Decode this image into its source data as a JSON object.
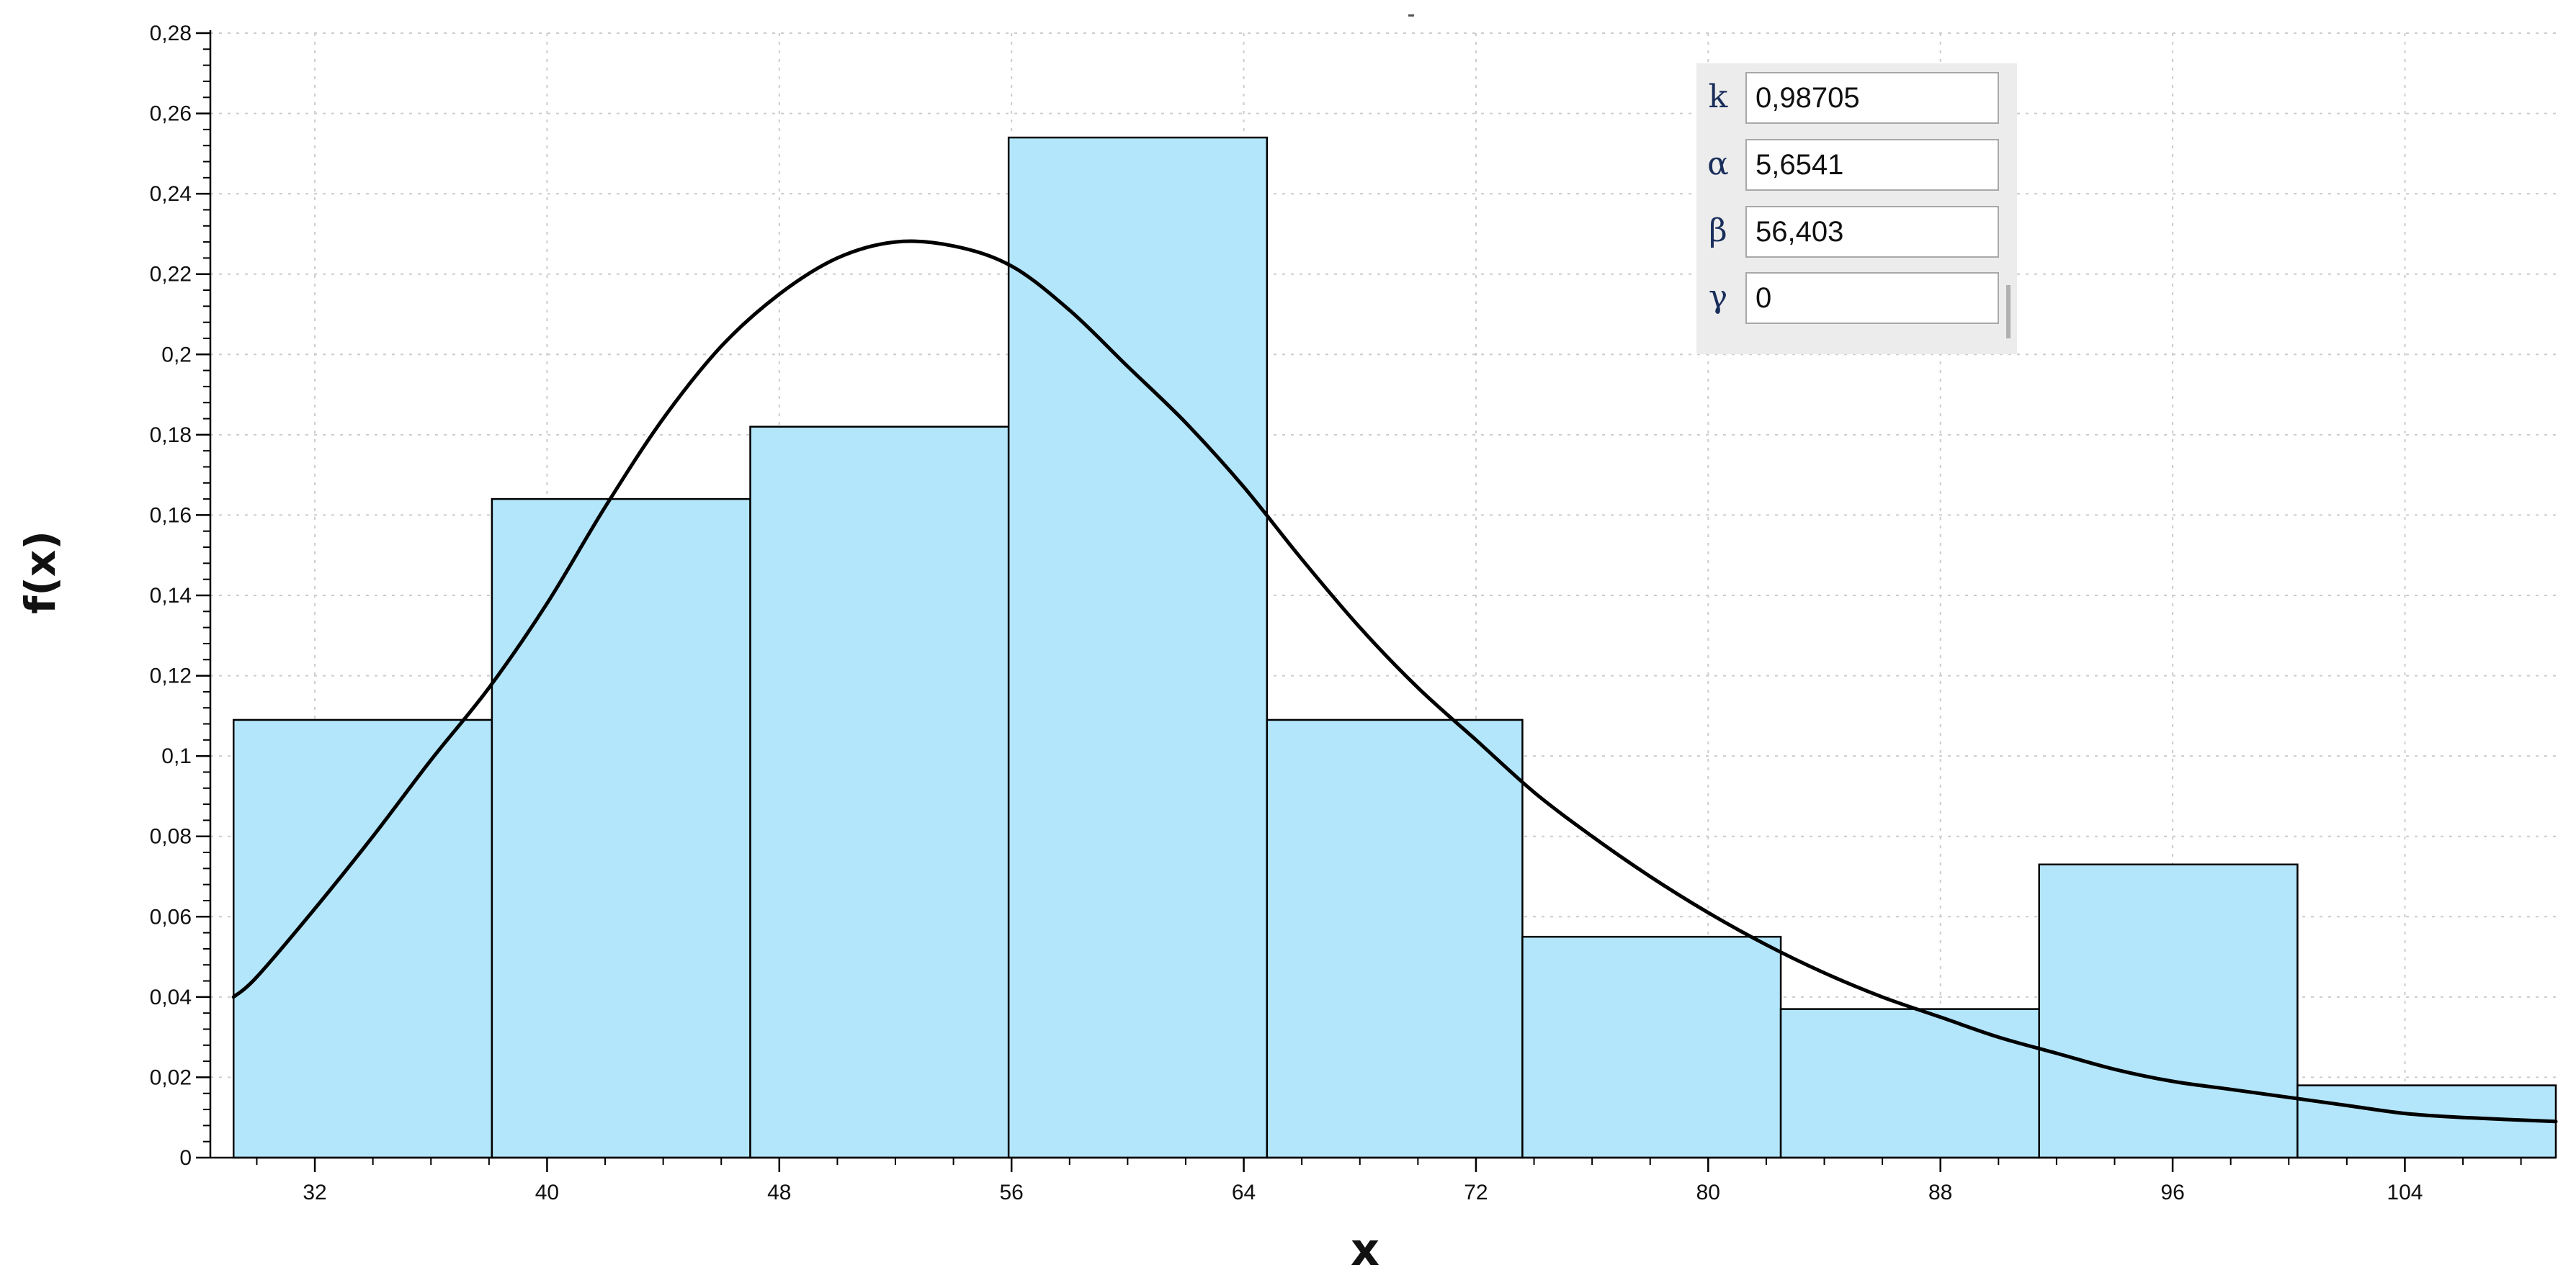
{
  "chart_data": {
    "type": "bar",
    "subtype": "histogram-with-density-curve",
    "xlabel": "x",
    "ylabel": "f(x)",
    "xlim": [
      28.4,
      109.2
    ],
    "ylim": [
      0,
      0.28
    ],
    "x_ticks": [
      32,
      40,
      48,
      56,
      64,
      72,
      80,
      88,
      96,
      104
    ],
    "x_tick_labels": [
      "32",
      "40",
      "48",
      "56",
      "64",
      "72",
      "80",
      "88",
      "96",
      "104"
    ],
    "y_ticks": [
      0,
      0.02,
      0.04,
      0.06,
      0.08,
      0.1,
      0.12,
      0.14,
      0.16,
      0.18,
      0.2,
      0.22,
      0.24,
      0.26,
      0.28
    ],
    "y_tick_labels": [
      "0",
      "0,02",
      "0,04",
      "0,06",
      "0,08",
      "0,1",
      "0,12",
      "0,14",
      "0,16",
      "0,18",
      "0,2",
      "0,22",
      "0,24",
      "0,26",
      "0,28"
    ],
    "grid": "dotted",
    "bars": [
      {
        "x0": 29.2,
        "x1": 38.1,
        "value": 0.109
      },
      {
        "x0": 38.1,
        "x1": 47.0,
        "value": 0.164
      },
      {
        "x0": 47.0,
        "x1": 55.9,
        "value": 0.182
      },
      {
        "x0": 55.9,
        "x1": 64.8,
        "value": 0.254
      },
      {
        "x0": 64.8,
        "x1": 73.6,
        "value": 0.109
      },
      {
        "x0": 73.6,
        "x1": 82.5,
        "value": 0.055
      },
      {
        "x0": 82.5,
        "x1": 91.4,
        "value": 0.037
      },
      {
        "x0": 91.4,
        "x1": 100.3,
        "value": 0.073
      },
      {
        "x0": 100.3,
        "x1": 109.2,
        "value": 0.018
      }
    ],
    "curve": {
      "x": [
        29.2,
        30,
        32,
        34,
        36,
        38,
        40,
        42,
        44,
        46,
        48,
        50,
        52,
        54,
        56,
        58,
        60,
        62,
        64,
        66,
        68,
        70,
        72,
        74,
        76,
        78,
        80,
        82,
        84,
        86,
        88,
        90,
        92,
        94,
        96,
        98,
        100,
        102,
        104,
        106,
        109.2
      ],
      "y": [
        0.04,
        0.045,
        0.062,
        0.08,
        0.099,
        0.117,
        0.138,
        0.162,
        0.184,
        0.202,
        0.215,
        0.224,
        0.228,
        0.227,
        0.222,
        0.211,
        0.197,
        0.183,
        0.167,
        0.149,
        0.132,
        0.117,
        0.104,
        0.091,
        0.08,
        0.07,
        0.061,
        0.053,
        0.046,
        0.04,
        0.035,
        0.03,
        0.026,
        0.022,
        0.019,
        0.017,
        0.015,
        0.013,
        0.011,
        0.01,
        0.009
      ]
    },
    "colors": {
      "bar_fill": "#b3e6fb",
      "bar_edge": "#000000",
      "curve": "#000000",
      "grid": "#cccccc"
    }
  },
  "params": [
    {
      "symbol": "k",
      "value": "0,98705"
    },
    {
      "symbol": "α",
      "value": "5,6541"
    },
    {
      "symbol": "β",
      "value": "56,403"
    },
    {
      "symbol": "γ",
      "value": "0"
    }
  ]
}
